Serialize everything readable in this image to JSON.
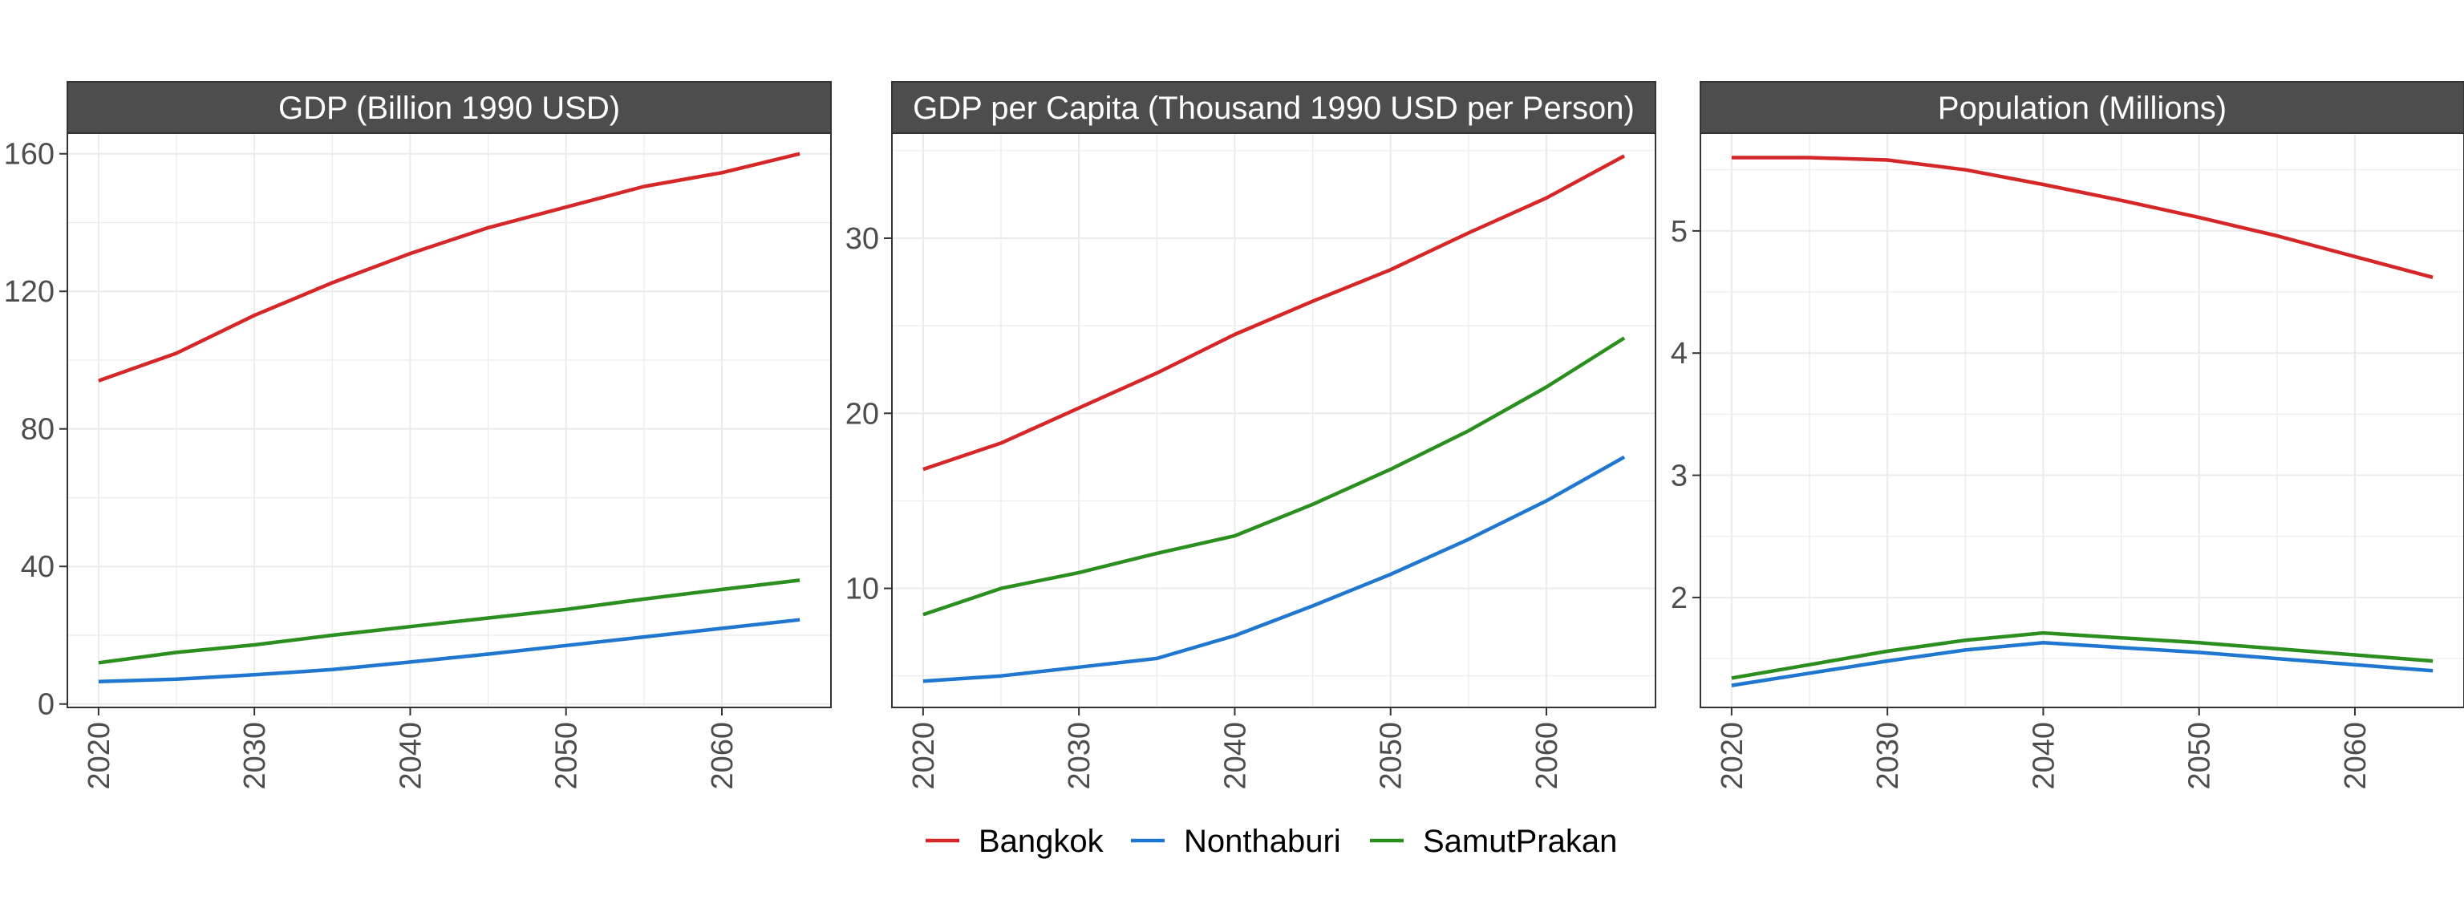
{
  "colors": {
    "Bangkok": "#d62728",
    "Nonthaburi": "#1f77d0",
    "SamutPrakan": "#2a8f1e",
    "strip": "#4d4d4d",
    "grid": "#ebebeb",
    "panel_border": "#333333"
  },
  "legend": {
    "placement": "bottom",
    "items": [
      "Bangkok",
      "Nonthaburi",
      "SamutPrakan"
    ]
  },
  "chart_data": [
    {
      "type": "line",
      "title": "GDP (Billion 1990 USD)",
      "xlabel": "",
      "ylabel": "",
      "xlim": [
        2018,
        2067
      ],
      "ylim": [
        -1,
        166
      ],
      "xticks": [
        2020,
        2030,
        2040,
        2050,
        2060
      ],
      "yticks": [
        0,
        40,
        80,
        120,
        160
      ],
      "grid": true,
      "x": [
        2020,
        2025,
        2030,
        2035,
        2040,
        2045,
        2050,
        2055,
        2060,
        2065
      ],
      "series": [
        {
          "name": "Bangkok",
          "values": [
            94,
            102,
            113,
            122.5,
            131,
            138.5,
            144.5,
            150.5,
            154.5,
            160
          ]
        },
        {
          "name": "Nonthaburi",
          "values": [
            6.5,
            7.2,
            8.5,
            10,
            12.2,
            14.5,
            17,
            19.5,
            22,
            24.5
          ]
        },
        {
          "name": "SamutPrakan",
          "values": [
            12,
            15,
            17.2,
            20,
            22.5,
            25,
            27.5,
            30.5,
            33.3,
            36
          ]
        }
      ]
    },
    {
      "type": "line",
      "title": "GDP per Capita (Thousand 1990 USD per Person)",
      "xlabel": "",
      "ylabel": "",
      "xlim": [
        2018,
        2067
      ],
      "ylim": [
        3.2,
        36
      ],
      "xticks": [
        2020,
        2030,
        2040,
        2050,
        2060
      ],
      "yticks": [
        10,
        20,
        30
      ],
      "grid": true,
      "x": [
        2020,
        2025,
        2030,
        2035,
        2040,
        2045,
        2050,
        2055,
        2060,
        2065
      ],
      "series": [
        {
          "name": "Bangkok",
          "values": [
            16.8,
            18.3,
            20.3,
            22.3,
            24.5,
            26.4,
            28.2,
            30.3,
            32.3,
            34.7
          ]
        },
        {
          "name": "Nonthaburi",
          "values": [
            4.7,
            5.0,
            5.5,
            6.0,
            7.3,
            9.0,
            10.8,
            12.8,
            15.0,
            17.5
          ]
        },
        {
          "name": "SamutPrakan",
          "values": [
            8.5,
            10.0,
            10.9,
            12.0,
            13.0,
            14.8,
            16.8,
            19.0,
            21.5,
            24.3
          ]
        }
      ]
    },
    {
      "type": "line",
      "title": "Population (Millions)",
      "xlabel": "",
      "ylabel": "",
      "xlim": [
        2018,
        2067
      ],
      "ylim": [
        1.1,
        5.8
      ],
      "xticks": [
        2020,
        2030,
        2040,
        2050,
        2060
      ],
      "yticks": [
        2,
        3,
        4,
        5
      ],
      "grid": true,
      "x": [
        2020,
        2025,
        2030,
        2035,
        2040,
        2045,
        2050,
        2055,
        2060,
        2065
      ],
      "series": [
        {
          "name": "Bangkok",
          "values": [
            5.6,
            5.6,
            5.58,
            5.5,
            5.38,
            5.25,
            5.11,
            4.96,
            4.79,
            4.62
          ]
        },
        {
          "name": "Nonthaburi",
          "values": [
            1.28,
            1.38,
            1.48,
            1.57,
            1.63,
            1.59,
            1.55,
            1.5,
            1.45,
            1.4
          ]
        },
        {
          "name": "SamutPrakan",
          "values": [
            1.34,
            1.45,
            1.56,
            1.65,
            1.71,
            1.67,
            1.63,
            1.58,
            1.53,
            1.48
          ]
        }
      ]
    }
  ]
}
